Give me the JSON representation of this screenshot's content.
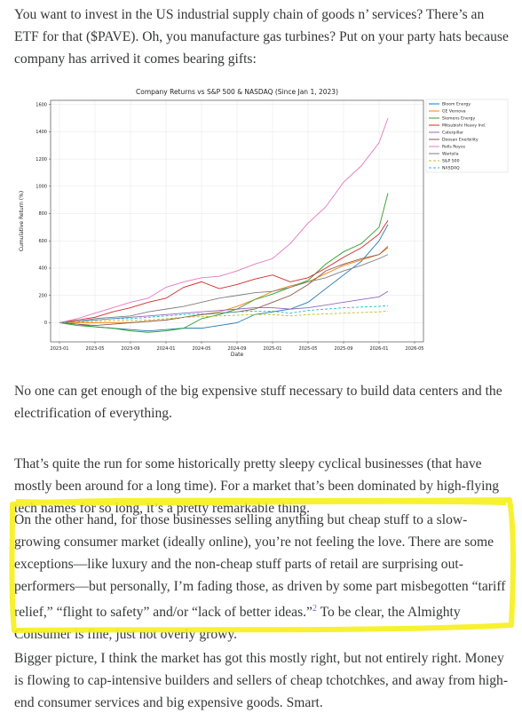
{
  "paragraphs": [
    "You want to invest in the US industrial supply chain of goods n’ services? There’s an ETF for that ($PAVE). Oh, you manufacture gas turbines? Put on your party hats because company has arrived it comes bearing gifts:",
    "No one can get enough of the big expensive stuff necessary to build data centers and the electrification of everything.",
    "That’s quite the run for some historically pretty sleepy cyclical businesses (that have mostly been around for a long time). For a market that’s been dominated by high-flying tech names for so long, it’s a pretty remarkable thing.",
    {
      "before": "On the other hand, for those businesses selling anything but cheap stuff to a slow-growing consumer market (ideally online), you’re not feeling the love. There are some exceptions—like luxury and the non-cheap stuff parts of retail are surprising out-performers—but personally, I’m fading those, as driven by some part misbegotten “tariff relief,” “flight to safety” and/or “lack of better ideas.”",
      "footnote": "2",
      "after": "To be clear, the Almighty Consumer is fine, just not overly growy."
    },
    "Bigger picture, I think the market has got this mostly right, but not entirely right. Money is flowing to cap-intensive builders and sellers of cheap tchotchkes, and away from high-end consumer services and big expensive goods. Smart."
  ],
  "chart_data": {
    "type": "line",
    "title": "Company Returns vs S&P 500 & NASDAQ (Since Jan 1, 2023)",
    "x_label": "Date",
    "y_label": "Cumulative Return (%)",
    "x": [
      "2023-01",
      "2023-03",
      "2023-05",
      "2023-07",
      "2023-09",
      "2023-11",
      "2024-01",
      "2024-03",
      "2024-05",
      "2024-07",
      "2024-09",
      "2024-11",
      "2025-01",
      "2025-03",
      "2025-05",
      "2025-07",
      "2025-09",
      "2025-11",
      "2026-01",
      "2026-02"
    ],
    "xlim": [
      "2022-12",
      "2026-06"
    ],
    "xticks": [
      "2023-01",
      "2023-05",
      "2023-09",
      "2024-01",
      "2024-05",
      "2024-09",
      "2025-01",
      "2025-05",
      "2025-09",
      "2026-01",
      "2026-05"
    ],
    "ylim": [
      -140,
      1630
    ],
    "yticks": [
      0,
      200,
      400,
      600,
      800,
      1000,
      1200,
      1400,
      1600
    ],
    "grid": true,
    "legend": "outside-right",
    "series": [
      {
        "name": "Bloom Energy",
        "color": "#1f77b4",
        "values": [
          0,
          -10,
          -30,
          -40,
          -50,
          -60,
          -50,
          -40,
          -40,
          -20,
          0,
          60,
          80,
          100,
          150,
          250,
          350,
          450,
          600,
          720
        ]
      },
      {
        "name": "GE Vernova",
        "color": "#ff7f0e",
        "values": [
          0,
          0,
          0,
          0,
          0,
          10,
          20,
          40,
          60,
          80,
          120,
          170,
          230,
          270,
          300,
          360,
          420,
          460,
          500,
          550
        ]
      },
      {
        "name": "Siemens Energy",
        "color": "#2ca02c",
        "values": [
          0,
          -20,
          -30,
          -40,
          -60,
          -70,
          -60,
          -40,
          30,
          60,
          100,
          170,
          210,
          260,
          310,
          430,
          520,
          580,
          700,
          950
        ]
      },
      {
        "name": "Mitsubishi Heavy Ind.",
        "color": "#d62728",
        "values": [
          0,
          20,
          40,
          80,
          110,
          150,
          180,
          260,
          300,
          250,
          280,
          320,
          350,
          300,
          330,
          400,
          480,
          550,
          650,
          750
        ]
      },
      {
        "name": "Caterpillar",
        "color": "#9467bd",
        "values": [
          0,
          10,
          20,
          30,
          40,
          50,
          60,
          70,
          80,
          90,
          100,
          110,
          110,
          100,
          110,
          130,
          150,
          170,
          190,
          230
        ]
      },
      {
        "name": "Doosan Enerbility",
        "color": "#8c564b",
        "values": [
          0,
          -10,
          -20,
          -10,
          0,
          10,
          20,
          40,
          60,
          70,
          80,
          100,
          150,
          200,
          280,
          380,
          430,
          470,
          500,
          560
        ]
      },
      {
        "name": "Rolls Royce",
        "color": "#e377c2",
        "values": [
          0,
          30,
          70,
          110,
          150,
          180,
          260,
          300,
          330,
          340,
          380,
          430,
          470,
          580,
          730,
          850,
          1030,
          1150,
          1320,
          1500
        ]
      },
      {
        "name": "Wartsila",
        "color": "#7f7f7f",
        "values": [
          0,
          10,
          30,
          40,
          50,
          80,
          100,
          120,
          150,
          180,
          200,
          220,
          230,
          260,
          300,
          330,
          380,
          420,
          470,
          500
        ]
      },
      {
        "name": "S&P 500",
        "color": "#bcbd22",
        "linestyle": "dashed",
        "values": [
          0,
          5,
          10,
          15,
          15,
          20,
          30,
          40,
          45,
          50,
          55,
          60,
          60,
          50,
          60,
          65,
          70,
          75,
          80,
          85
        ]
      },
      {
        "name": "NASDAQ",
        "color": "#17becf",
        "linestyle": "dashed",
        "values": [
          0,
          10,
          20,
          30,
          30,
          40,
          50,
          60,
          65,
          70,
          80,
          85,
          85,
          70,
          90,
          100,
          110,
          115,
          120,
          125
        ]
      }
    ]
  }
}
